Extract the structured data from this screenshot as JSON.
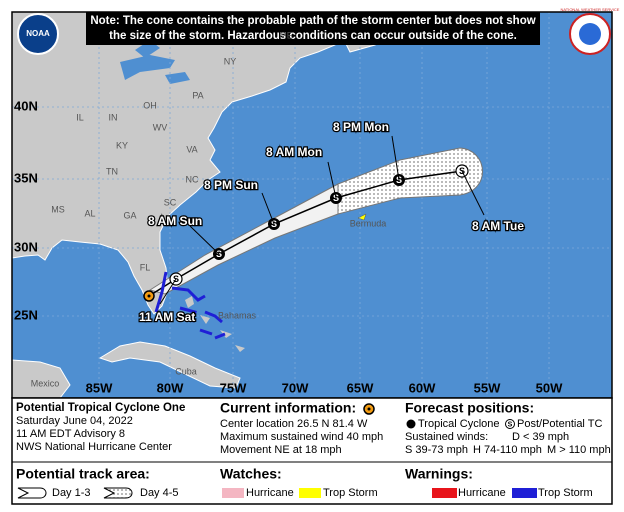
{
  "note": {
    "lines": [
      "Note: The cone contains the probable path of the storm center but does not show",
      "the size of the storm. Hazardous conditions can occur outside of the cone."
    ]
  },
  "logos": {
    "left": "NOAA",
    "right": "NATIONAL WEATHER SERVICE"
  },
  "map": {
    "lat_labels": [
      "40N",
      "35N",
      "30N",
      "25N"
    ],
    "lon_labels": [
      "85W",
      "80W",
      "75W",
      "70W",
      "65W",
      "60W",
      "55W",
      "50W"
    ],
    "place_labels": [
      "NY",
      "PA",
      "OH",
      "IN",
      "IL",
      "KY",
      "WV",
      "VA",
      "TN",
      "NC",
      "SC",
      "MS",
      "AL",
      "GA",
      "FL",
      "ME",
      "Bermuda",
      "Bahamas",
      "Cuba",
      "Mexico"
    ],
    "forecast_labels": [
      "11 AM Sat",
      "8 AM Sun",
      "8 PM Sun",
      "8 AM Mon",
      "8 PM Mon",
      "8 AM Tue"
    ],
    "point_symbol": "S"
  },
  "panel": {
    "storm": [
      "Potential Tropical Cyclone One",
      "Saturday June 04, 2022",
      "11 AM EDT Advisory 8",
      "NWS National Hurricane Center"
    ],
    "current": {
      "title": "Current information:",
      "lines": [
        "Center location 26.5 N 81.4 W",
        "Maximum sustained wind 40 mph",
        "Movement NE at 18 mph"
      ]
    },
    "forecast": {
      "title": "Forecast positions:",
      "tropical": "Tropical Cyclone",
      "post": "Post/Potential TC",
      "winds": "Sustained winds:",
      "d": "D < 39 mph",
      "s": "S 39-73 mph",
      "h": "H 74-110 mph",
      "m": "M > 110 mph"
    },
    "track": {
      "title": "Potential track area:",
      "day13": "Day 1-3",
      "day45": "Day 4-5"
    },
    "watches": {
      "title": "Watches:",
      "hurricane": "Hurricane",
      "trop": "Trop Storm"
    },
    "warnings": {
      "title": "Warnings:",
      "hurricane": "Hurricane",
      "trop": "Trop Storm"
    }
  }
}
